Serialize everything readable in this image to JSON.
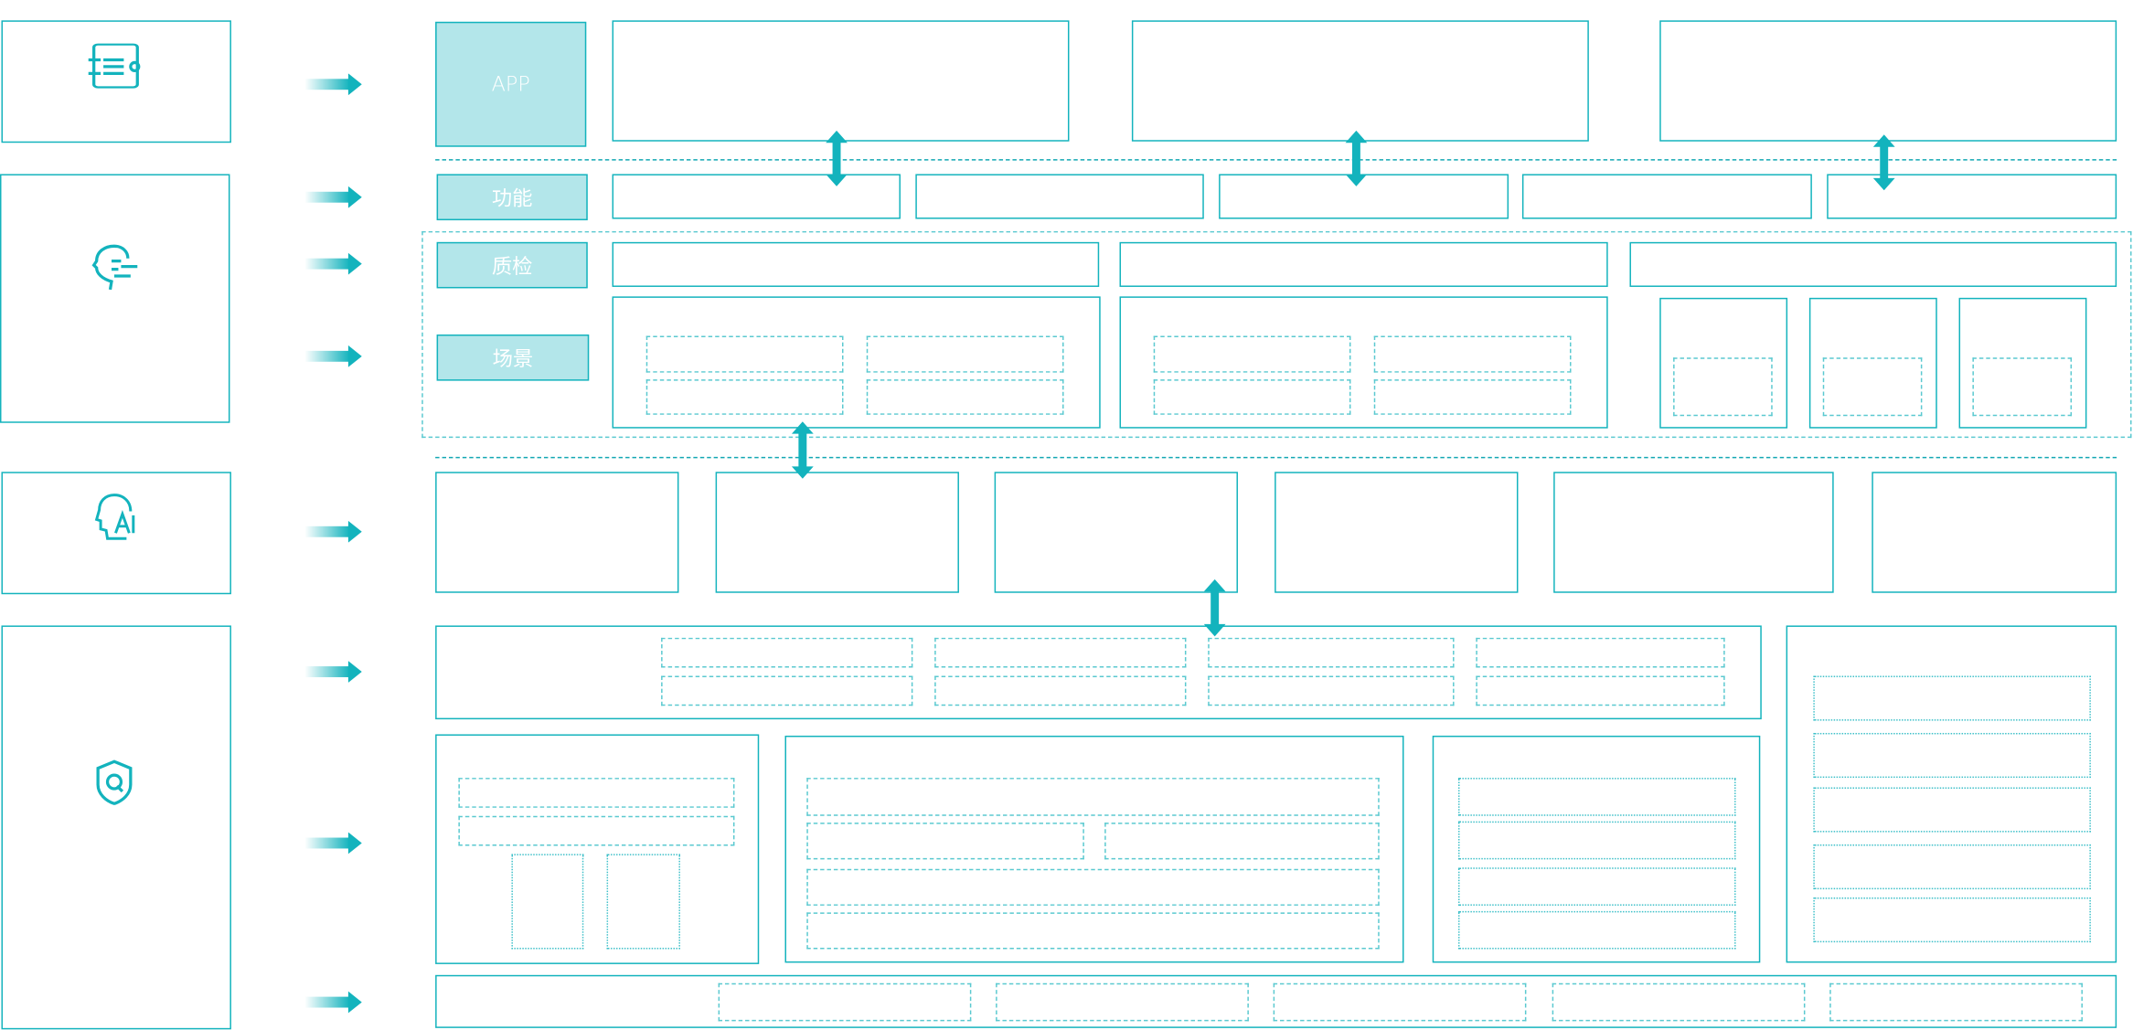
{
  "colors": {
    "accent": "#13b3bd",
    "label_fill": "#b3e6ea",
    "label_text": "#ffffff"
  },
  "left_panels": [
    {
      "icon": "document-list-icon"
    },
    {
      "icon": "head-speech-icon"
    },
    {
      "icon": "ai-head-icon"
    },
    {
      "icon": "shield-q-icon"
    }
  ],
  "layer_labels": {
    "app": "APP",
    "function": "功能",
    "quality_check": "质检",
    "scenario": "场景"
  }
}
